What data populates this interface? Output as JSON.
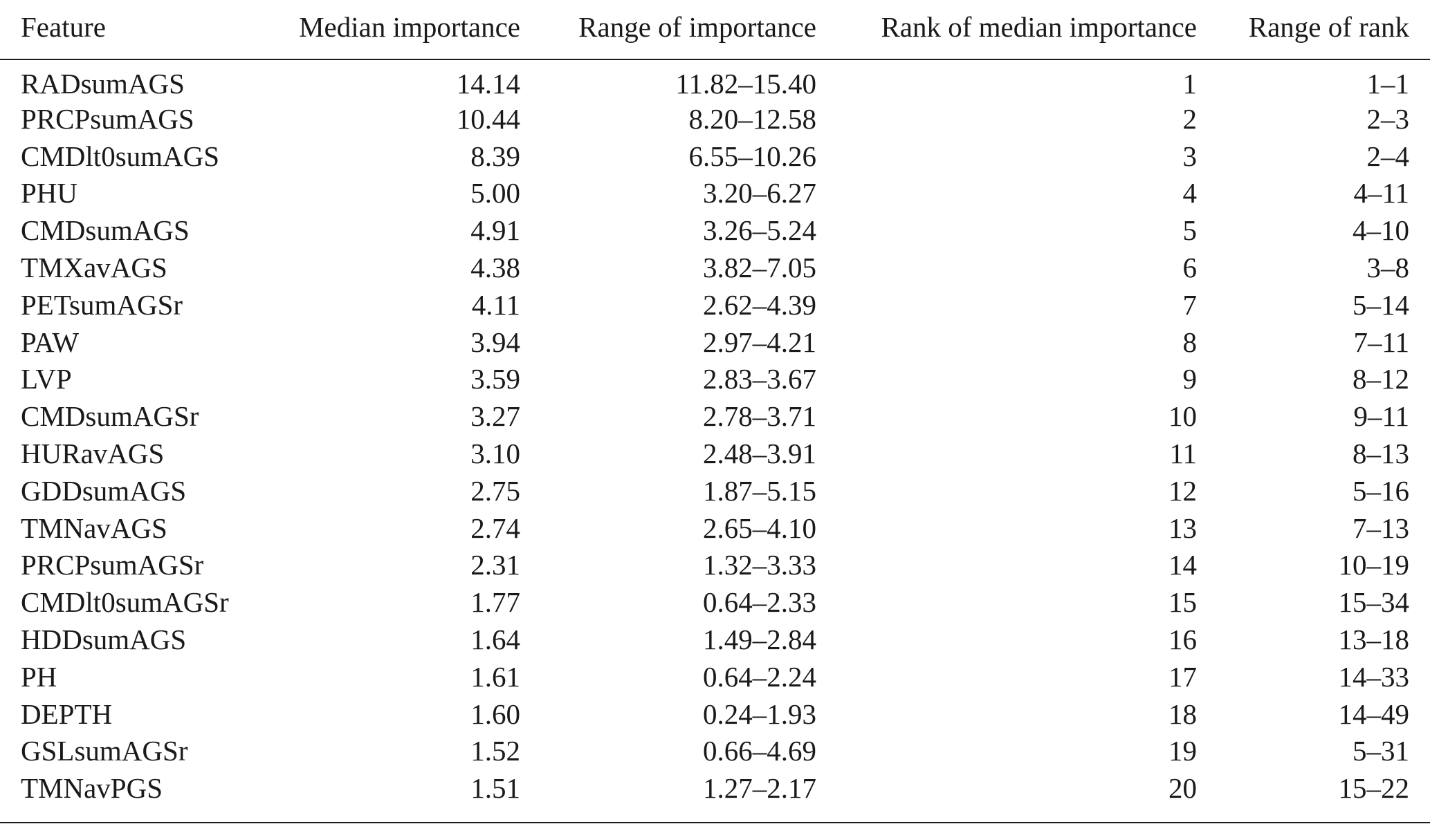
{
  "table": {
    "headers": [
      "Feature",
      "Median importance",
      "Range of importance",
      "Rank of median importance",
      "Range of rank"
    ],
    "rows": [
      [
        "RADsumAGS",
        "14.14",
        "11.82–15.40",
        "1",
        "1–1"
      ],
      [
        "PRCPsumAGS",
        "10.44",
        "8.20–12.58",
        "2",
        "2–3"
      ],
      [
        "CMDlt0sumAGS",
        "8.39",
        "6.55–10.26",
        "3",
        "2–4"
      ],
      [
        "PHU",
        "5.00",
        "3.20–6.27",
        "4",
        "4–11"
      ],
      [
        "CMDsumAGS",
        "4.91",
        "3.26–5.24",
        "5",
        "4–10"
      ],
      [
        "TMXavAGS",
        "4.38",
        "3.82–7.05",
        "6",
        "3–8"
      ],
      [
        "PETsumAGSr",
        "4.11",
        "2.62–4.39",
        "7",
        "5–14"
      ],
      [
        "PAW",
        "3.94",
        "2.97–4.21",
        "8",
        "7–11"
      ],
      [
        "LVP",
        "3.59",
        "2.83–3.67",
        "9",
        "8–12"
      ],
      [
        "CMDsumAGSr",
        "3.27",
        "2.78–3.71",
        "10",
        "9–11"
      ],
      [
        "HURavAGS",
        "3.10",
        "2.48–3.91",
        "11",
        "8–13"
      ],
      [
        "GDDsumAGS",
        "2.75",
        "1.87–5.15",
        "12",
        "5–16"
      ],
      [
        "TMNavAGS",
        "2.74",
        "2.65–4.10",
        "13",
        "7–13"
      ],
      [
        "PRCPsumAGSr",
        "2.31",
        "1.32–3.33",
        "14",
        "10–19"
      ],
      [
        "CMDlt0sumAGSr",
        "1.77",
        "0.64–2.33",
        "15",
        "15–34"
      ],
      [
        "HDDsumAGS",
        "1.64",
        "1.49–2.84",
        "16",
        "13–18"
      ],
      [
        "PH",
        "1.61",
        "0.64–2.24",
        "17",
        "14–33"
      ],
      [
        "DEPTH",
        "1.60",
        "0.24–1.93",
        "18",
        "14–49"
      ],
      [
        "GSLsumAGSr",
        "1.52",
        "0.66–4.69",
        "19",
        "5–31"
      ],
      [
        "TMNavPGS",
        "1.51",
        "1.27–2.17",
        "20",
        "15–22"
      ]
    ]
  }
}
